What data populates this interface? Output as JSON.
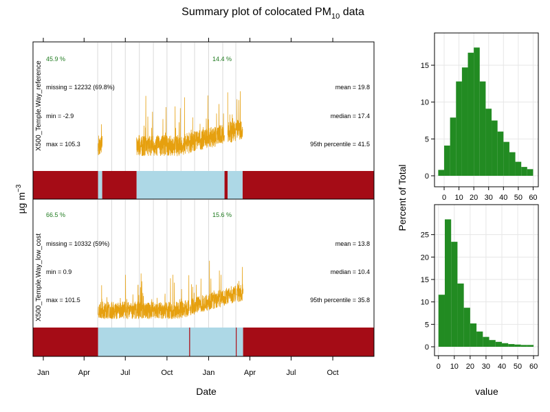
{
  "title": {
    "main": "Summary plot of colocated PM",
    "sub": "10",
    "tail": " data"
  },
  "ylabel": {
    "base": "µg m",
    "sup": "−3"
  },
  "xlabel": "Date",
  "hist_ylabel": "Percent of Total",
  "hist_xlabel": "value",
  "colors": {
    "series": "#E6A00F",
    "present": "#ADD8E6",
    "missing": "#A50C16",
    "hist": "#228B22",
    "pct_text": "#1E7A1E",
    "grid": "#D9D9D9"
  },
  "chart_data": [
    {
      "type": "line",
      "title": "Summary plot of colocated PM10 data",
      "xlabel": "Date",
      "ylabel": "µg m−3",
      "x_ticks": [
        "Jan",
        "Apr",
        "Jul",
        "Oct",
        "Jan",
        "Apr",
        "Jul",
        "Oct"
      ],
      "x_range": [
        "2019-01-01",
        "2020-12-31"
      ],
      "grid": true,
      "panels": [
        {
          "name": "X500_Temple.Way_reference",
          "pct_left": "45.9 %",
          "pct_mid": "14.4 %",
          "missing": "missing = 12232 (69.8%)",
          "min": "min = -2.9",
          "max": "max = 105.3",
          "mean": "mean = 19.8",
          "median": "median = 17.4",
          "p95": "95th percentile = 41.5",
          "availability": [
            {
              "start": "2019-01-01",
              "end": "2019-05-02",
              "present": false
            },
            {
              "start": "2019-05-02",
              "end": "2019-05-11",
              "present": true
            },
            {
              "start": "2019-05-11",
              "end": "2019-07-26",
              "present": false
            },
            {
              "start": "2019-07-26",
              "end": "2020-02-05",
              "present": true
            },
            {
              "start": "2020-02-05",
              "end": "2020-02-12",
              "present": false
            },
            {
              "start": "2020-02-12",
              "end": "2020-03-16",
              "present": true
            },
            {
              "start": "2020-03-16",
              "end": "2020-12-31",
              "present": false
            }
          ]
        },
        {
          "name": "X500_Temple.Way_low_cost",
          "pct_left": "66.5 %",
          "pct_mid": "15.6 %",
          "missing": "missing = 10332 (59%)",
          "min": "min = 0.9",
          "max": "max = 101.5",
          "mean": "mean = 13.8",
          "median": "median = 10.4",
          "p95": "95th percentile = 35.8",
          "availability": [
            {
              "start": "2019-01-01",
              "end": "2019-05-02",
              "present": false
            },
            {
              "start": "2019-05-02",
              "end": "2019-11-19",
              "present": true
            },
            {
              "start": "2019-11-19",
              "end": "2019-11-21",
              "present": false
            },
            {
              "start": "2019-11-21",
              "end": "2020-03-01",
              "present": true
            },
            {
              "start": "2020-03-01",
              "end": "2020-03-03",
              "present": false
            },
            {
              "start": "2020-03-03",
              "end": "2020-03-17",
              "present": true
            },
            {
              "start": "2020-03-17",
              "end": "2020-12-31",
              "present": false
            }
          ]
        }
      ]
    },
    {
      "type": "bar",
      "xlabel": "value",
      "ylabel": "Percent of Total",
      "bin_width": 4,
      "x_ticks": [
        0,
        10,
        20,
        30,
        40,
        50,
        60
      ],
      "ylim": [
        0,
        18
      ],
      "y_ticks": [
        0,
        5,
        10,
        15
      ],
      "bins": [
        -4,
        0,
        4,
        8,
        12,
        16,
        20,
        24,
        28,
        32,
        36,
        40,
        44,
        48,
        52,
        56
      ],
      "values": [
        0.8,
        4.1,
        7.9,
        12.8,
        14.7,
        16.7,
        17.4,
        12.8,
        9.1,
        7.5,
        6.0,
        4.6,
        3.2,
        1.9,
        1.2,
        0.9
      ],
      "grid": true
    },
    {
      "type": "bar",
      "xlabel": "value",
      "ylabel": "Percent of Total",
      "bin_width": 4,
      "x_ticks": [
        0,
        10,
        20,
        30,
        40,
        50,
        60
      ],
      "ylim": [
        0,
        30
      ],
      "y_ticks": [
        0,
        5,
        10,
        15,
        20,
        25
      ],
      "bins": [
        0,
        4,
        8,
        12,
        16,
        20,
        24,
        28,
        32,
        36,
        40,
        44,
        48,
        52,
        56
      ],
      "values": [
        11.6,
        28.4,
        23.4,
        14.1,
        8.7,
        5.2,
        3.4,
        2.2,
        1.5,
        1.1,
        0.8,
        0.6,
        0.5,
        0.4,
        0.4
      ],
      "grid": true
    }
  ]
}
